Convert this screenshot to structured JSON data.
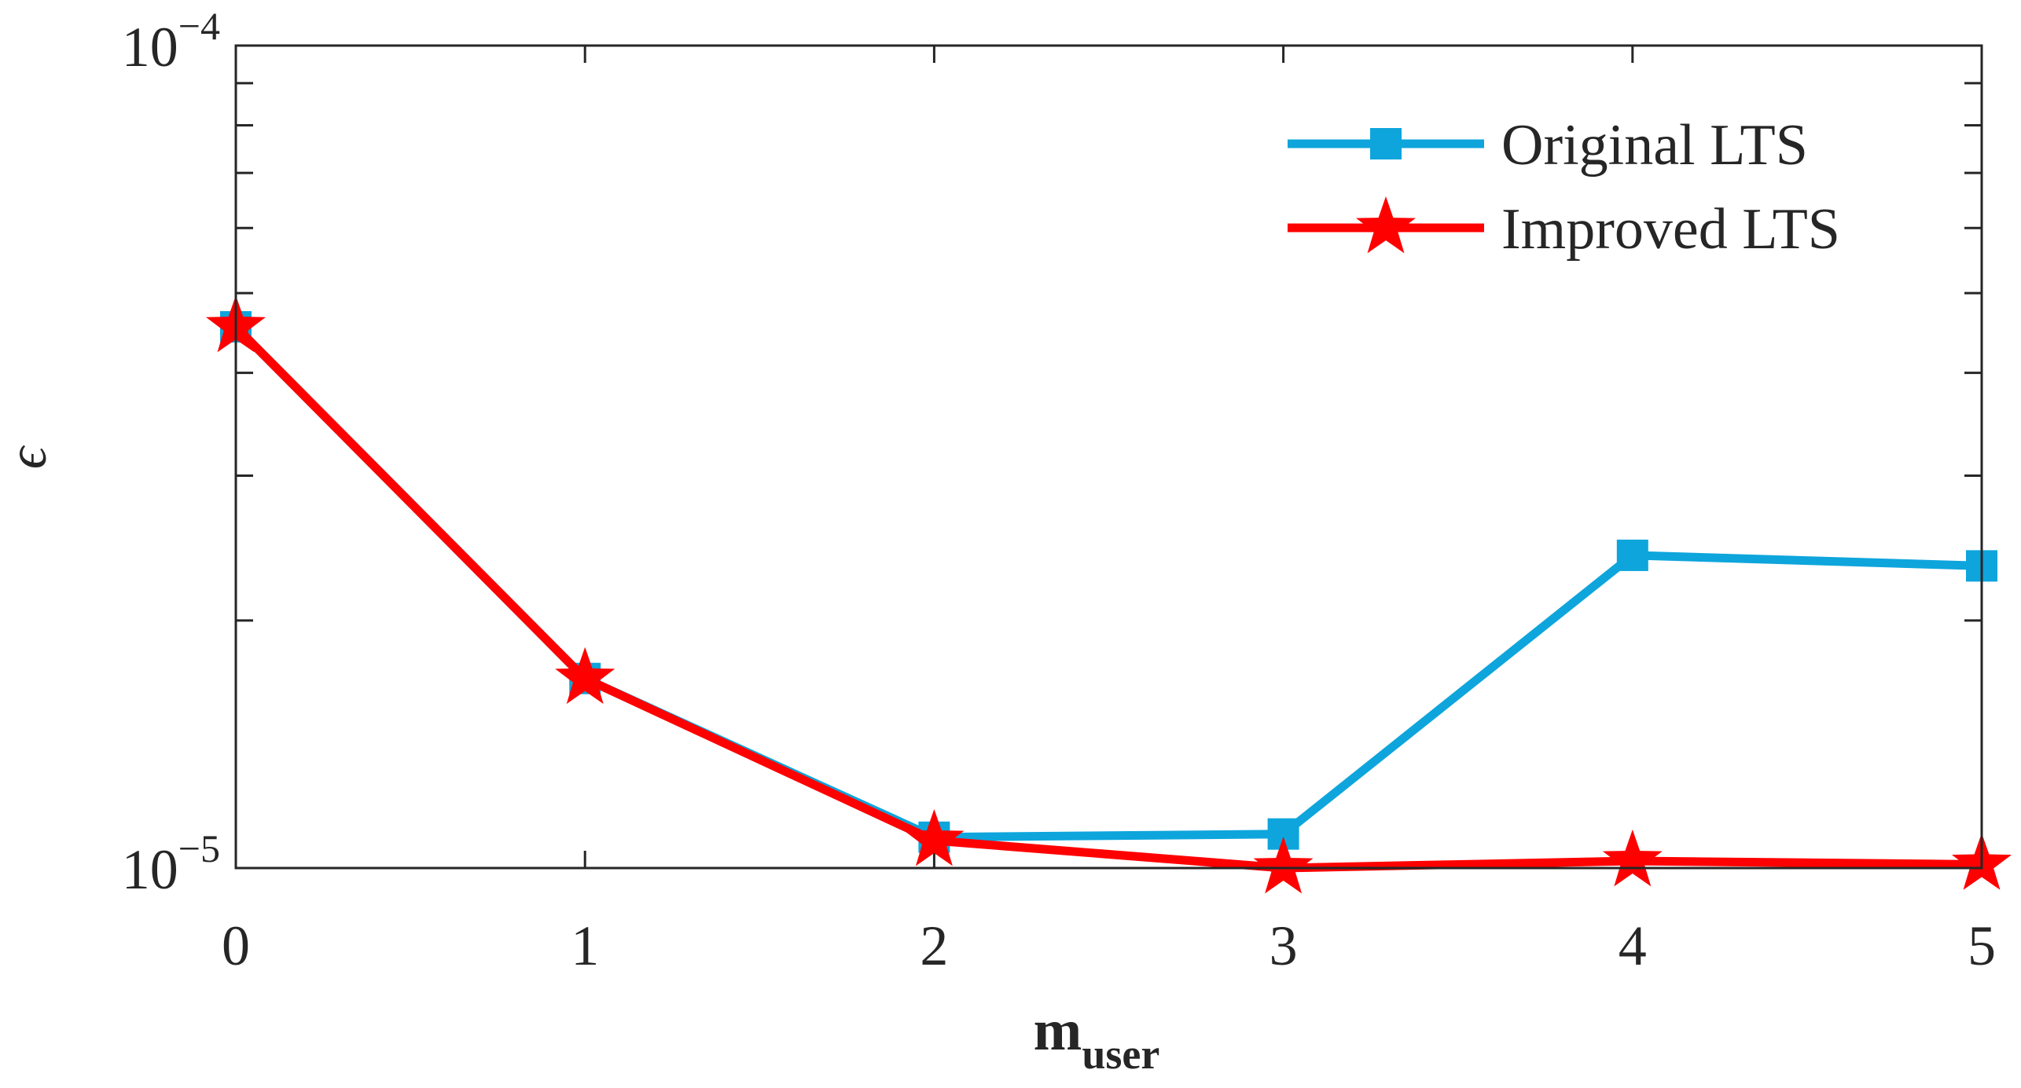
{
  "chart_data": {
    "type": "line",
    "x": [
      0,
      1,
      2,
      3,
      4,
      5
    ],
    "series": [
      {
        "name": "Original LTS",
        "color": "#0EA5DC",
        "marker": "square",
        "values": [
          4.55e-05,
          1.7e-05,
          1.09e-05,
          1.1e-05,
          2.4e-05,
          2.33e-05
        ]
      },
      {
        "name": "Improved LTS",
        "color": "#FF0000",
        "marker": "star",
        "values": [
          4.55e-05,
          1.7e-05,
          1.08e-05,
          1e-05,
          1.02e-05,
          1.01e-05
        ]
      }
    ],
    "x_ticks": [
      "0",
      "1",
      "2",
      "3",
      "4",
      "5"
    ],
    "y_ticks": [
      {
        "base": "10",
        "exp": "−5",
        "value": 1e-05
      },
      {
        "base": "10",
        "exp": "−4",
        "value": 0.0001
      }
    ],
    "xlim": [
      0,
      5
    ],
    "ylim": [
      1e-05,
      0.0001
    ],
    "yscale": "log",
    "xlabel": {
      "main": "m",
      "sub": "user"
    },
    "ylabel": "ϵ",
    "legend_position": "top-right",
    "grid": false
  }
}
